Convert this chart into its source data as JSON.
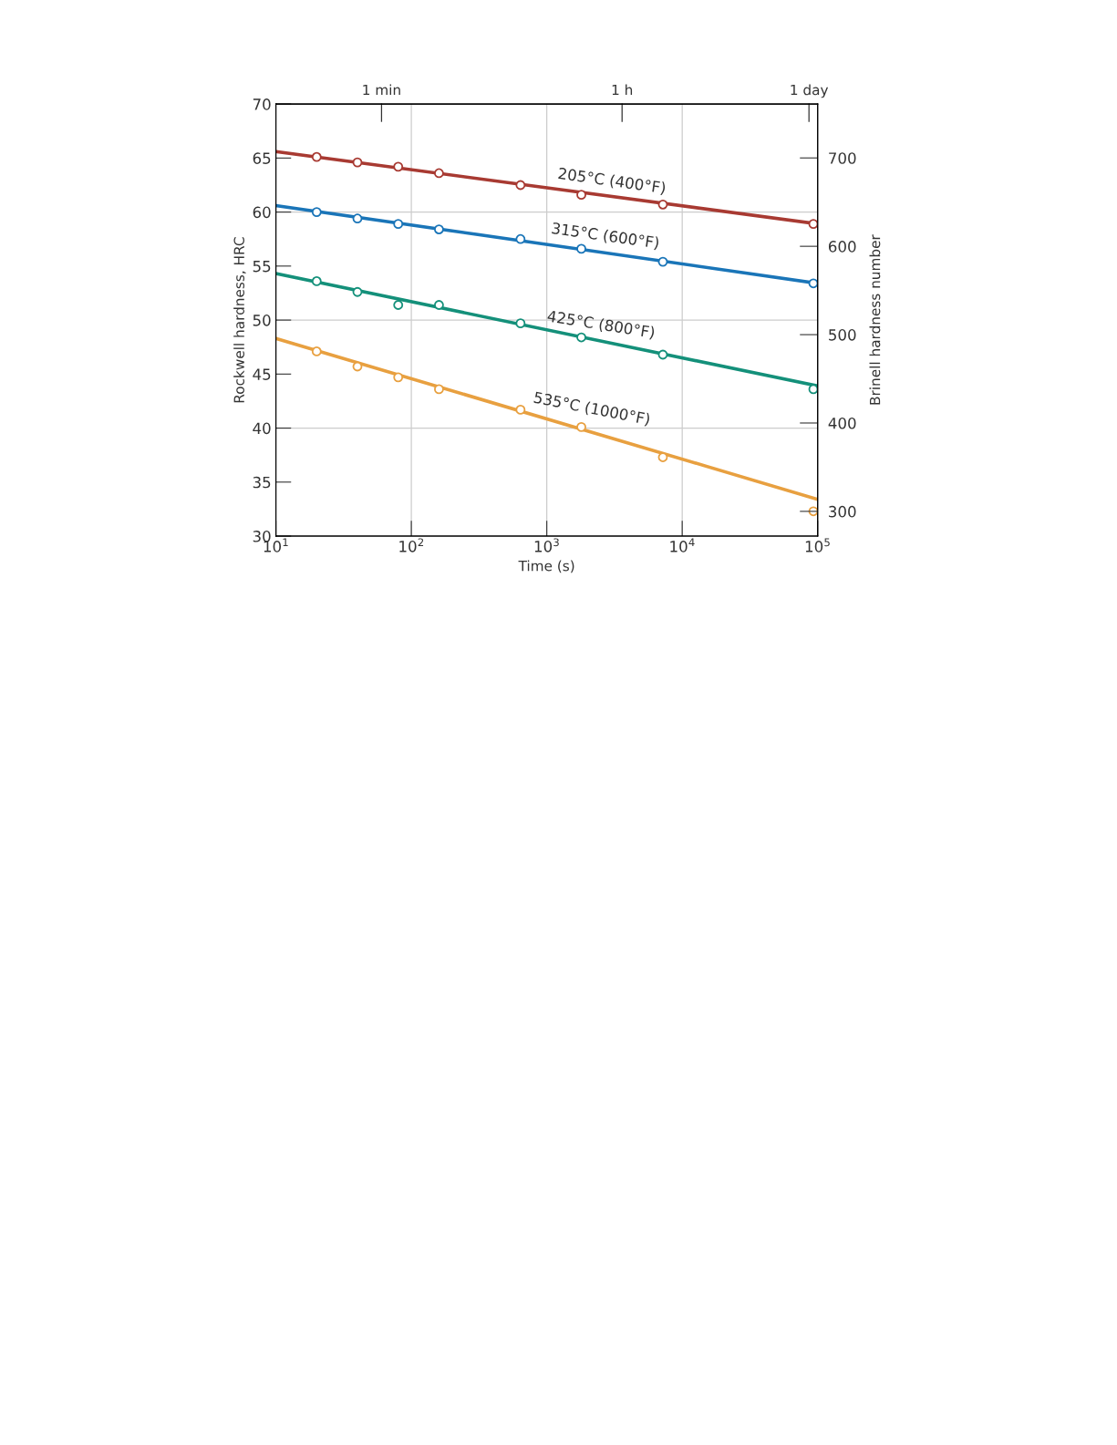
{
  "chart_data": {
    "type": "scatter",
    "xlabel": "Time (s)",
    "ylabel": "Rockwell hardness, HRC",
    "y2label": "Brinell hardness number",
    "log": "x",
    "xlim": [
      10,
      100000
    ],
    "xticks": [
      {
        "value": 10,
        "label": "10$^{1}$"
      },
      {
        "value": 100,
        "label": "10$^{2}$"
      },
      {
        "value": 1000,
        "label": "10$^{3}$"
      },
      {
        "value": 10000,
        "label": "10$^{4}$"
      },
      {
        "value": 100000,
        "label": "10$^{5}$"
      }
    ],
    "ylim": [
      30,
      70
    ],
    "yticks": [
      30,
      35,
      40,
      45,
      50,
      55,
      60,
      65,
      70
    ],
    "y2lim": [
      272,
      761
    ],
    "y2ticks": [
      300,
      400,
      500,
      600,
      700
    ],
    "marker": "circle",
    "grid": false,
    "ref_lines": [
      {
        "axis": "x",
        "value": 100,
        "color": "#cccccc"
      },
      {
        "axis": "x",
        "value": 1000,
        "color": "#cccccc"
      },
      {
        "axis": "x",
        "value": 10000,
        "color": "#cccccc"
      },
      {
        "axis": "y",
        "value": 40,
        "color": "#cccccc"
      },
      {
        "axis": "y",
        "value": 50,
        "color": "#cccccc"
      },
      {
        "axis": "y",
        "value": 60,
        "color": "#cccccc"
      }
    ],
    "series": [
      {
        "type": "line",
        "color": "#a83a32",
        "marker": "none",
        "x": [
          10,
          100000
        ],
        "values": [
          65.6,
          58.9
        ]
      },
      {
        "type": "line",
        "color": "#1a75b8",
        "marker": "none",
        "x": [
          10,
          100000
        ],
        "values": [
          60.6,
          53.4
        ]
      },
      {
        "type": "line",
        "color": "#14907a",
        "marker": "none",
        "x": [
          10,
          100000
        ],
        "values": [
          54.3,
          43.9
        ]
      },
      {
        "type": "line",
        "color": "#e8a040",
        "marker": "none",
        "x": [
          10,
          100000
        ],
        "values": [
          48.3,
          33.4
        ]
      },
      {
        "color": "#a83a32",
        "x": [
          20,
          40,
          80,
          160,
          640,
          1800,
          7200,
          93000
        ],
        "values": [
          65.1,
          64.6,
          64.2,
          63.6,
          62.5,
          61.6,
          60.7,
          58.9
        ]
      },
      {
        "color": "#1a75b8",
        "x": [
          20,
          40,
          80,
          160,
          640,
          1800,
          7200,
          93000
        ],
        "values": [
          60.0,
          59.4,
          58.9,
          58.4,
          57.5,
          56.6,
          55.4,
          53.4
        ]
      },
      {
        "color": "#14907a",
        "x": [
          20,
          40,
          80,
          160,
          640,
          1800,
          7200,
          93000
        ],
        "values": [
          53.6,
          52.6,
          51.4,
          51.4,
          49.7,
          48.4,
          46.8,
          43.6
        ]
      },
      {
        "color": "#e8a040",
        "x": [
          20,
          40,
          80,
          160,
          640,
          1800,
          7200,
          93000
        ],
        "values": [
          47.1,
          45.7,
          44.7,
          43.6,
          41.7,
          40.1,
          37.3,
          32.3
        ]
      }
    ],
    "annotations": [
      "205°C (400°F)",
      "315°C (600°F)",
      "425°C (800°F)",
      "535°C (1000°F)",
      "1 min",
      "1 h",
      "1 day"
    ]
  }
}
